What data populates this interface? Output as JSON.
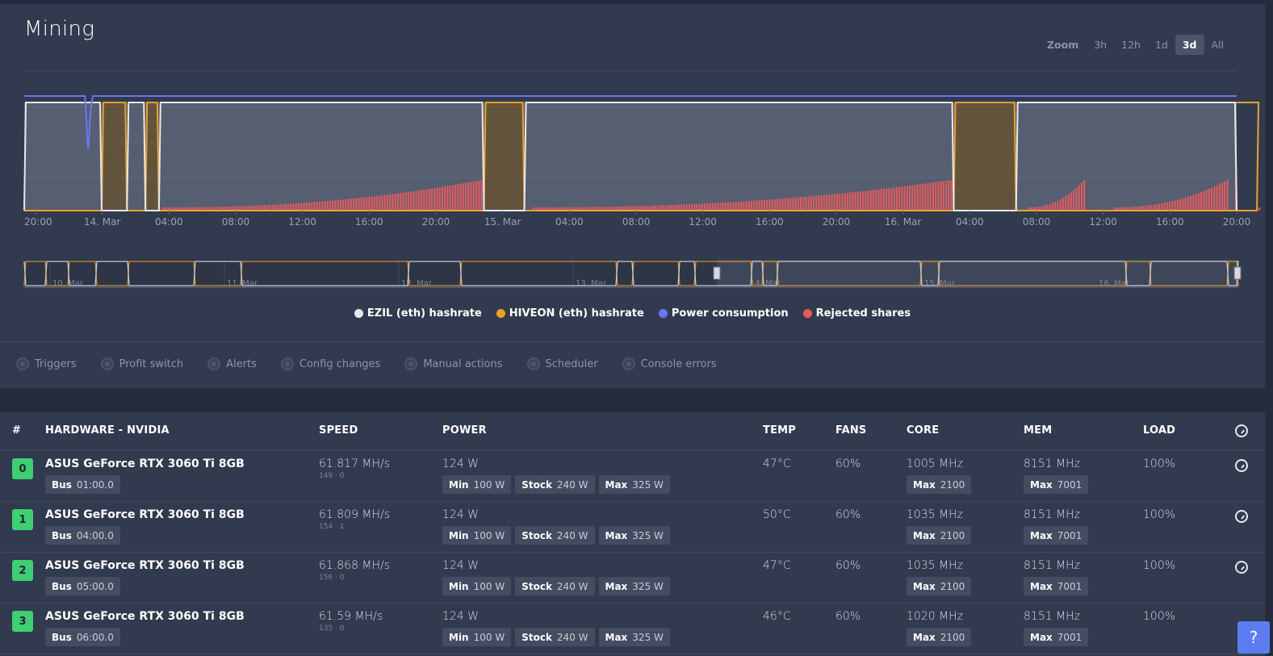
{
  "mining": {
    "title": "Mining",
    "zoom": {
      "label": "Zoom",
      "options": [
        "3h",
        "12h",
        "1d",
        "3d",
        "All"
      ],
      "active": "3d"
    },
    "legend": [
      {
        "label": "EZIL (eth) hashrate",
        "color": "#e6e8ee"
      },
      {
        "label": "HIVEON (eth) hashrate",
        "color": "#f0a025"
      },
      {
        "label": "Power consumption",
        "color": "#6a76f0"
      },
      {
        "label": "Rejected shares",
        "color": "#e85b5b"
      }
    ],
    "events": [
      "Triggers",
      "Profit switch",
      "Alerts",
      "Config changes",
      "Manual actions",
      "Scheduler",
      "Console errors"
    ]
  },
  "chart_data": {
    "type": "line",
    "x_ticks": [
      "20:00",
      "14. Mar",
      "04:00",
      "08:00",
      "12:00",
      "16:00",
      "20:00",
      "15. Mar",
      "04:00",
      "08:00",
      "12:00",
      "16:00",
      "20:00",
      "16. Mar",
      "04:00",
      "08:00",
      "12:00",
      "16:00",
      "20:00"
    ],
    "navigator_ticks": [
      "10. Mar",
      "11. Mar",
      "12. Mar",
      "13. Mar",
      "14. Mar",
      "15. Mar",
      "16. Mar"
    ],
    "hours": 72,
    "series": [
      {
        "name": "EZIL (eth) hashrate",
        "color": "#e6e8ee",
        "active_intervals": [
          [
            0,
            4.6
          ],
          [
            6.1,
            7.2
          ],
          [
            8.0,
            27.3
          ],
          [
            29.7,
            55.2
          ],
          [
            58.9,
            73.2
          ]
        ]
      },
      {
        "name": "HIVEON (eth) hashrate",
        "color": "#f0a025",
        "active_intervals": [
          [
            4.6,
            6.1
          ],
          [
            7.2,
            8.0
          ],
          [
            27.3,
            29.7
          ],
          [
            55.2,
            58.9
          ],
          [
            73.2,
            75.0
          ]
        ]
      },
      {
        "name": "Power consumption",
        "color": "#6a76f0",
        "dip_at": 3.8
      },
      {
        "name": "Rejected shares",
        "color": "#e85b5b",
        "segments": [
          [
            8.2,
            27.2
          ],
          [
            30.2,
            55.1
          ],
          [
            59.6,
            63.0
          ],
          [
            64.7,
            71.5
          ],
          [
            73.3,
            75.0
          ]
        ]
      }
    ]
  },
  "table": {
    "headers": {
      "idx": "#",
      "hardware": "HARDWARE - NVIDIA",
      "speed": "SPEED",
      "power": "POWER",
      "temp": "TEMP",
      "fans": "FANS",
      "core": "CORE",
      "mem": "MEM",
      "load": "LOAD"
    },
    "labels": {
      "bus": "Bus",
      "min": "Min",
      "stock": "Stock",
      "max": "Max"
    },
    "rows": [
      {
        "idx": "0",
        "name": "ASUS GeForce RTX 3060 Ti 8GB",
        "bus": "01:00.0",
        "speed": "61.817 MH/s",
        "shares": "149 · 0",
        "power": "124 W",
        "min": "100 W",
        "stock": "240 W",
        "max": "325 W",
        "temp": "47°C",
        "fans": "60%",
        "core": "1005 MHz",
        "core_max": "2100",
        "mem": "8151 MHz",
        "mem_max": "7001",
        "load": "100%"
      },
      {
        "idx": "1",
        "name": "ASUS GeForce RTX 3060 Ti 8GB",
        "bus": "04:00.0",
        "speed": "61.809 MH/s",
        "shares": "154 · 1",
        "power": "124 W",
        "min": "100 W",
        "stock": "240 W",
        "max": "325 W",
        "temp": "50°C",
        "fans": "60%",
        "core": "1035 MHz",
        "core_max": "2100",
        "mem": "8151 MHz",
        "mem_max": "7001",
        "load": "100%"
      },
      {
        "idx": "2",
        "name": "ASUS GeForce RTX 3060 Ti 8GB",
        "bus": "05:00.0",
        "speed": "61.868 MH/s",
        "shares": "156 · 0",
        "power": "124 W",
        "min": "100 W",
        "stock": "240 W",
        "max": "325 W",
        "temp": "47°C",
        "fans": "60%",
        "core": "1035 MHz",
        "core_max": "2100",
        "mem": "8151 MHz",
        "mem_max": "7001",
        "load": "100%"
      },
      {
        "idx": "3",
        "name": "ASUS GeForce RTX 3060 Ti 8GB",
        "bus": "06:00.0",
        "speed": "61.59 MH/s",
        "shares": "135 · 0",
        "power": "124 W",
        "min": "100 W",
        "stock": "240 W",
        "max": "325 W",
        "temp": "46°C",
        "fans": "60%",
        "core": "1020 MHz",
        "core_max": "2100",
        "mem": "8151 MHz",
        "mem_max": "7001",
        "load": "100%"
      }
    ]
  },
  "help": {
    "label": "?"
  }
}
